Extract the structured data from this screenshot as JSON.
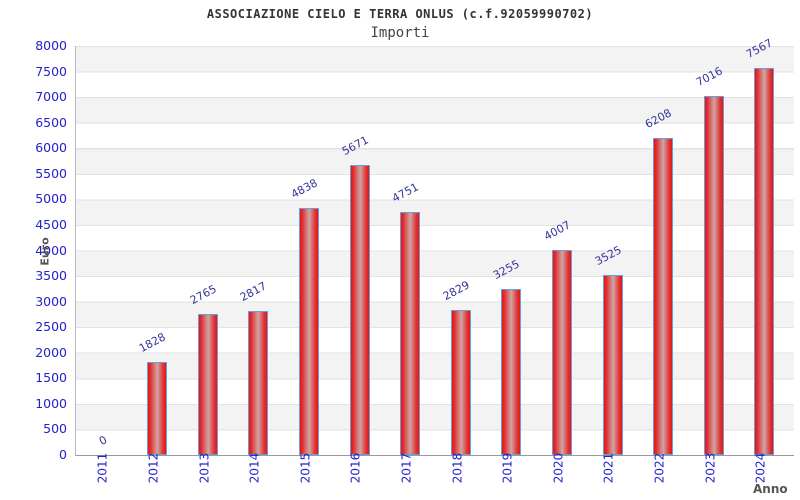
{
  "chart_data": {
    "type": "bar",
    "title": "ASSOCIAZIONE CIELO E TERRA ONLUS (c.f.92059990702)",
    "subtitle": "Importi",
    "xlabel": "Anno",
    "ylabel": "Euro",
    "categories": [
      "2011",
      "2012",
      "2013",
      "2014",
      "2015",
      "2016",
      "2017",
      "2018",
      "2019",
      "2020",
      "2021",
      "2022",
      "2023",
      "2024"
    ],
    "values": [
      0,
      1828,
      2765,
      2817,
      4838,
      5671,
      4751,
      2829,
      3255,
      4007,
      3525,
      6208,
      7016,
      7567
    ],
    "ylim": [
      0,
      8000
    ],
    "ytick_step": 500,
    "grid": true,
    "legend": "none",
    "colors": {
      "bar_fill": "#ed1414",
      "bar_highlight": "#cda4a4",
      "bar_border": "#64a0dc",
      "tick_text": "#2222cc",
      "value_text": "#333399",
      "title_text": "#333333",
      "axis_title_text": "#555555",
      "band_gray": "#f3f3f3",
      "band_white": "#ffffff",
      "gridline": "#e2e2e2"
    }
  }
}
